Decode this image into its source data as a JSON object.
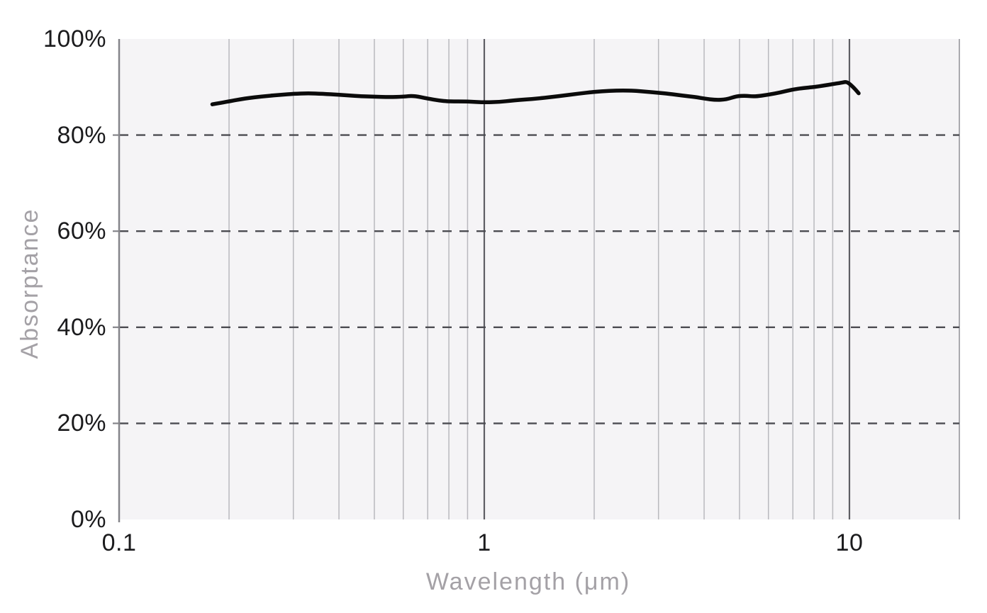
{
  "chart_data": {
    "type": "line",
    "title": "",
    "xlabel": "Wavelength (μm)",
    "ylabel": "Absorptance",
    "x_scale": "log",
    "xlim": [
      0.1,
      20
    ],
    "ylim": [
      0,
      100
    ],
    "grid": "on",
    "legend": "none",
    "x_tick_labels": [
      {
        "value": 0.1,
        "label": "0.1"
      },
      {
        "value": 1,
        "label": "1"
      },
      {
        "value": 10,
        "label": "10"
      }
    ],
    "y_tick_labels": [
      {
        "value": 0,
        "label": "0%"
      },
      {
        "value": 20,
        "label": "20%"
      },
      {
        "value": 40,
        "label": "40%"
      },
      {
        "value": 60,
        "label": "60%"
      },
      {
        "value": 80,
        "label": "80%"
      },
      {
        "value": 100,
        "label": "100%"
      }
    ],
    "x_minor_gridlines": [
      0.2,
      0.3,
      0.4,
      0.5,
      0.6,
      0.7,
      0.8,
      0.9,
      2,
      3,
      4,
      5,
      6,
      7,
      8,
      9
    ],
    "x_major_gridlines": [
      1,
      10
    ],
    "x_edge_gridlines": [
      20
    ],
    "y_dashed_gridlines": [
      20,
      40,
      60,
      80
    ],
    "series": [
      {
        "name": "absorptance",
        "points": [
          [
            0.18,
            86.4
          ],
          [
            0.2,
            87.0
          ],
          [
            0.22,
            87.6
          ],
          [
            0.25,
            88.1
          ],
          [
            0.28,
            88.4
          ],
          [
            0.3,
            88.6
          ],
          [
            0.33,
            88.7
          ],
          [
            0.36,
            88.6
          ],
          [
            0.4,
            88.4
          ],
          [
            0.45,
            88.1
          ],
          [
            0.5,
            88.0
          ],
          [
            0.55,
            87.9
          ],
          [
            0.6,
            88.0
          ],
          [
            0.64,
            88.2
          ],
          [
            0.7,
            87.6
          ],
          [
            0.75,
            87.2
          ],
          [
            0.8,
            87.0
          ],
          [
            0.9,
            87.0
          ],
          [
            1.0,
            86.8
          ],
          [
            1.1,
            86.9
          ],
          [
            1.2,
            87.2
          ],
          [
            1.4,
            87.6
          ],
          [
            1.6,
            88.1
          ],
          [
            1.8,
            88.6
          ],
          [
            2.0,
            89.0
          ],
          [
            2.2,
            89.2
          ],
          [
            2.4,
            89.3
          ],
          [
            2.6,
            89.2
          ],
          [
            2.8,
            89.0
          ],
          [
            3.0,
            88.8
          ],
          [
            3.2,
            88.6
          ],
          [
            3.5,
            88.2
          ],
          [
            3.8,
            87.9
          ],
          [
            4.0,
            87.6
          ],
          [
            4.3,
            87.3
          ],
          [
            4.6,
            87.4
          ],
          [
            4.9,
            88.1
          ],
          [
            5.2,
            88.2
          ],
          [
            5.5,
            88.0
          ],
          [
            6.0,
            88.4
          ],
          [
            6.5,
            88.9
          ],
          [
            7.0,
            89.5
          ],
          [
            7.5,
            89.8
          ],
          [
            8.0,
            90.0
          ],
          [
            8.5,
            90.3
          ],
          [
            9.0,
            90.6
          ],
          [
            9.5,
            90.9
          ],
          [
            9.8,
            91.1
          ],
          [
            10.0,
            90.7
          ],
          [
            10.3,
            89.8
          ],
          [
            10.6,
            88.7
          ]
        ]
      }
    ],
    "colors": {
      "page_background": "#ffffff",
      "plot_background": "#f5f4f6",
      "minor_gridline": "#b9b9be",
      "major_gridline": "#5e5e64",
      "edge_gridline": "#aaaaaf",
      "dashed_gridline": "#4c4c52",
      "axis_spine": "#85858a",
      "tick_label": "#1b1b1d",
      "axis_title": "#a4a1a6",
      "line": "#0b0b0b"
    },
    "layout": {
      "plot_left": 168,
      "plot_right": 1353,
      "plot_top": 55,
      "plot_bottom": 733
    }
  }
}
